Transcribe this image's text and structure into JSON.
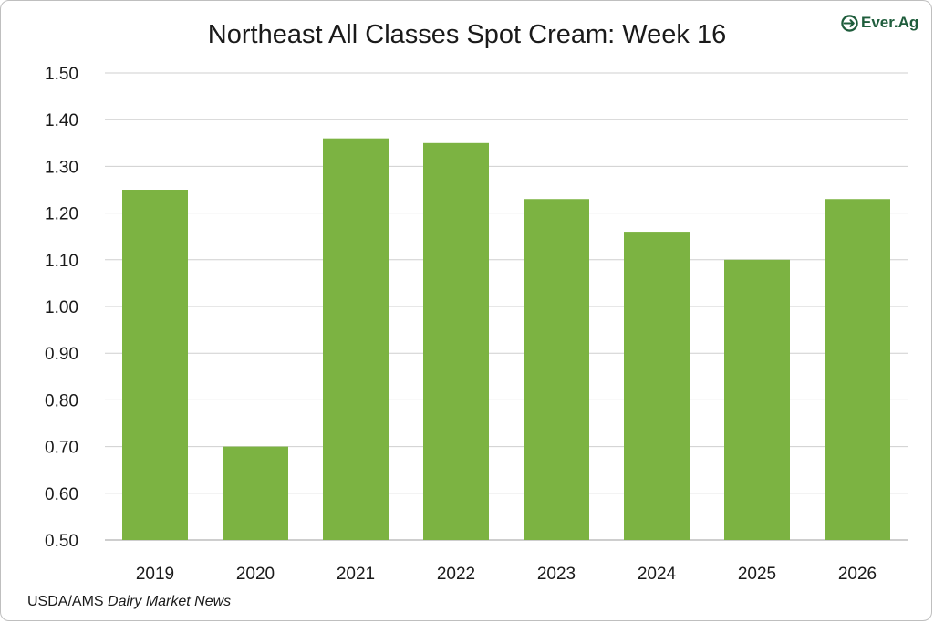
{
  "title": "Northeast All Classes Spot Cream: Week 16",
  "logo": {
    "text": "Ever.Ag",
    "icon": "ever-ag-logo-icon",
    "color": "#1f5d3c"
  },
  "source": {
    "org": "USDA/AMS",
    "publication": "Dairy Market News"
  },
  "colors": {
    "bar": "#7cb342",
    "grid": "#cfcfcf",
    "axis": "#9e9e9e"
  },
  "chart_data": {
    "type": "bar",
    "title": "Northeast All Classes Spot Cream: Week 16",
    "xlabel": "",
    "ylabel": "",
    "categories": [
      "2019",
      "2020",
      "2021",
      "2022",
      "2023",
      "2024",
      "2025",
      "2026"
    ],
    "values": [
      1.25,
      0.7,
      1.36,
      1.35,
      1.23,
      1.16,
      1.1,
      1.23
    ],
    "ylim": [
      0.5,
      1.5
    ],
    "yticks": [
      "0.50",
      "0.60",
      "0.70",
      "0.80",
      "0.90",
      "1.00",
      "1.10",
      "1.20",
      "1.30",
      "1.40",
      "1.50"
    ],
    "grid": true,
    "legend": "none"
  }
}
